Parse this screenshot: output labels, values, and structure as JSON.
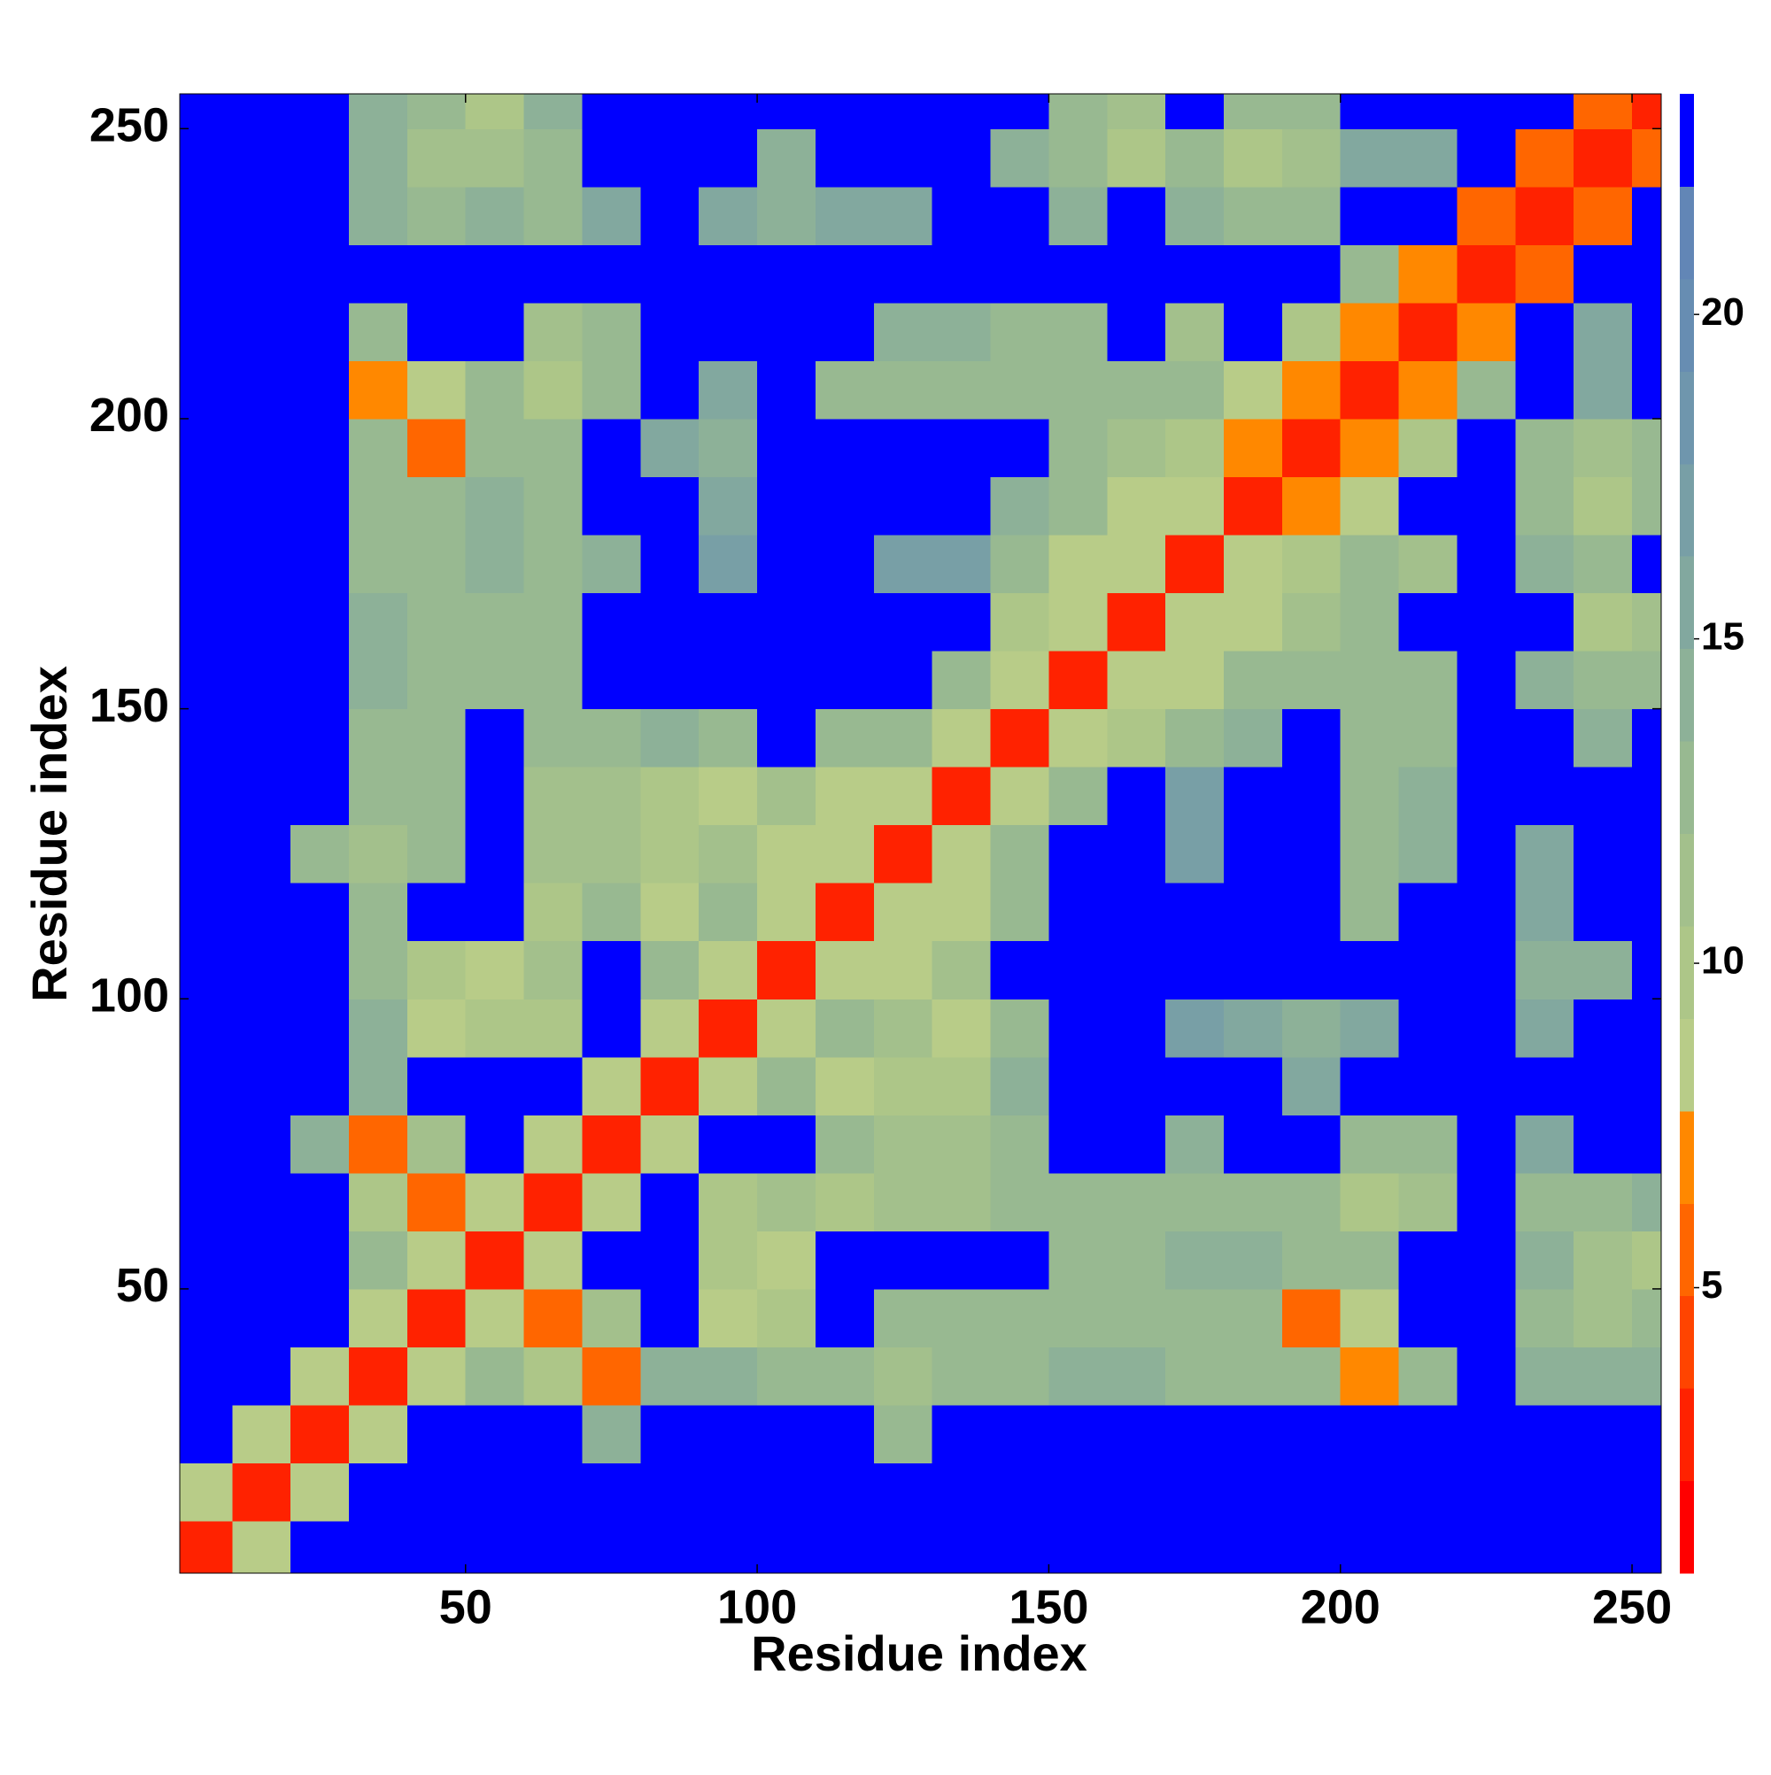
{
  "chart_data": {
    "type": "heatmap",
    "xlabel": "Residue index",
    "ylabel": "Residue index",
    "xlim": [
      1,
      255
    ],
    "ylim": [
      1,
      256
    ],
    "xticks": [
      50,
      100,
      150,
      200,
      250
    ],
    "yticks": [
      50,
      100,
      150,
      200,
      250
    ],
    "x_bins": [
      0,
      10,
      20,
      30,
      40,
      50,
      60,
      70,
      80,
      90,
      100,
      110,
      120,
      130,
      140,
      150,
      160,
      170,
      180,
      190,
      200,
      210,
      220,
      230,
      240,
      250,
      260
    ],
    "y_bins": [
      0,
      10,
      20,
      30,
      40,
      50,
      60,
      70,
      80,
      90,
      100,
      110,
      120,
      130,
      140,
      150,
      160,
      170,
      180,
      190,
      200,
      210,
      220,
      230,
      240,
      250,
      260
    ],
    "values": [
      [
        3,
        9,
        24,
        24,
        24,
        24,
        24,
        24,
        24,
        24,
        24,
        24,
        24,
        24,
        24,
        24,
        24,
        24,
        24,
        24,
        24,
        24,
        24,
        24,
        24,
        24
      ],
      [
        9,
        3,
        9,
        24,
        24,
        24,
        24,
        24,
        24,
        24,
        24,
        24,
        24,
        24,
        24,
        24,
        24,
        24,
        24,
        24,
        24,
        24,
        24,
        24,
        24,
        24
      ],
      [
        24,
        9,
        3,
        9,
        24,
        24,
        24,
        14,
        24,
        24,
        24,
        24,
        13,
        24,
        24,
        24,
        24,
        24,
        24,
        24,
        24,
        24,
        24,
        24,
        24,
        24
      ],
      [
        24,
        24,
        9,
        3,
        9,
        12,
        10,
        6,
        14,
        14,
        12,
        13,
        11,
        12,
        12,
        14,
        14,
        13,
        13,
        13,
        7,
        12,
        24,
        14,
        14,
        14
      ],
      [
        24,
        24,
        24,
        9,
        3,
        9,
        6,
        11,
        24,
        9,
        10,
        24,
        13,
        12,
        12,
        13,
        12,
        12,
        12,
        6,
        8,
        24,
        24,
        13,
        11,
        12
      ],
      [
        24,
        24,
        24,
        12,
        9,
        3,
        9,
        24,
        24,
        10,
        9,
        24,
        24,
        24,
        24,
        12,
        13,
        14,
        14,
        12,
        13,
        24,
        24,
        14,
        11,
        10
      ],
      [
        24,
        24,
        24,
        10,
        6,
        9,
        3,
        9,
        24,
        10,
        11,
        10,
        11,
        11,
        12,
        13,
        12,
        12,
        13,
        12,
        10,
        11,
        24,
        13,
        12,
        14
      ],
      [
        24,
        24,
        14,
        6,
        11,
        24,
        9,
        3,
        9,
        24,
        24,
        12,
        11,
        11,
        13,
        24,
        24,
        14,
        24,
        24,
        12,
        13,
        24,
        16,
        24,
        24
      ],
      [
        24,
        24,
        24,
        14,
        24,
        24,
        24,
        9,
        3,
        8,
        12,
        9,
        10,
        10,
        14,
        24,
        24,
        24,
        24,
        16,
        24,
        24,
        24,
        24,
        24,
        24
      ],
      [
        24,
        24,
        24,
        14,
        9,
        10,
        10,
        24,
        8,
        3,
        8,
        12,
        11,
        9,
        13,
        24,
        24,
        17,
        16,
        14,
        16,
        24,
        24,
        15,
        24,
        24
      ],
      [
        24,
        24,
        24,
        12,
        10,
        9,
        11,
        24,
        12,
        8,
        3,
        8,
        8,
        11,
        24,
        24,
        24,
        24,
        24,
        24,
        24,
        24,
        24,
        14,
        14,
        24
      ],
      [
        24,
        24,
        24,
        13,
        24,
        24,
        10,
        12,
        9,
        12,
        8,
        3,
        8,
        9,
        13,
        24,
        24,
        24,
        24,
        24,
        13,
        24,
        24,
        15,
        24,
        24
      ],
      [
        24,
        24,
        13,
        11,
        13,
        24,
        11,
        11,
        10,
        11,
        8,
        8,
        3,
        8,
        12,
        24,
        24,
        17,
        24,
        24,
        13,
        14,
        24,
        16,
        24,
        24
      ],
      [
        24,
        24,
        24,
        12,
        12,
        24,
        11,
        11,
        10,
        9,
        11,
        9,
        8,
        3,
        8,
        12,
        24,
        17,
        24,
        24,
        12,
        14,
        24,
        24,
        24,
        24
      ],
      [
        24,
        24,
        24,
        12,
        12,
        24,
        12,
        13,
        14,
        13,
        24,
        13,
        12,
        8,
        3,
        8,
        10,
        12,
        14,
        24,
        12,
        13,
        24,
        24,
        14,
        24
      ],
      [
        24,
        24,
        24,
        14,
        13,
        12,
        13,
        24,
        24,
        24,
        24,
        24,
        24,
        12,
        8,
        3,
        8,
        9,
        12,
        13,
        13,
        13,
        24,
        14,
        13,
        13
      ],
      [
        24,
        24,
        24,
        14,
        12,
        13,
        12,
        24,
        24,
        24,
        24,
        24,
        24,
        24,
        10,
        8,
        3,
        8,
        9,
        11,
        12,
        24,
        24,
        24,
        10,
        11
      ],
      [
        24,
        24,
        24,
        13,
        12,
        14,
        12,
        14,
        24,
        17,
        24,
        24,
        17,
        17,
        12,
        9,
        8,
        3,
        8,
        10,
        12,
        11,
        24,
        14,
        13,
        24
      ],
      [
        24,
        24,
        24,
        13,
        12,
        14,
        13,
        24,
        24,
        16,
        24,
        24,
        24,
        24,
        14,
        12,
        9,
        8,
        3,
        7,
        8,
        24,
        24,
        12,
        10,
        12
      ],
      [
        24,
        24,
        24,
        13,
        6,
        12,
        12,
        24,
        16,
        14,
        24,
        24,
        24,
        24,
        24,
        13,
        11,
        10,
        7,
        3,
        7,
        10,
        24,
        12,
        11,
        13
      ],
      [
        24,
        24,
        24,
        7,
        8,
        13,
        10,
        12,
        24,
        16,
        24,
        13,
        13,
        12,
        12,
        13,
        12,
        12,
        8,
        7,
        3,
        7,
        12,
        24,
        16,
        24
      ],
      [
        24,
        24,
        24,
        12,
        24,
        24,
        11,
        13,
        24,
        24,
        24,
        24,
        14,
        14,
        13,
        13,
        24,
        11,
        24,
        10,
        7,
        3,
        7,
        24,
        16,
        24
      ],
      [
        24,
        24,
        24,
        24,
        24,
        24,
        24,
        24,
        24,
        24,
        24,
        24,
        24,
        24,
        24,
        24,
        24,
        24,
        24,
        24,
        12,
        7,
        3,
        6,
        24,
        24
      ],
      [
        24,
        24,
        24,
        14,
        13,
        14,
        13,
        16,
        24,
        15,
        14,
        15,
        16,
        24,
        24,
        14,
        24,
        14,
        12,
        12,
        24,
        24,
        6,
        3,
        6,
        24
      ],
      [
        24,
        24,
        24,
        14,
        11,
        11,
        12,
        24,
        24,
        24,
        14,
        24,
        24,
        24,
        14,
        13,
        10,
        13,
        10,
        11,
        16,
        16,
        24,
        6,
        3,
        6
      ],
      [
        24,
        24,
        24,
        14,
        12,
        10,
        14,
        24,
        24,
        24,
        24,
        24,
        24,
        24,
        24,
        13,
        11,
        24,
        12,
        13,
        24,
        24,
        24,
        24,
        6,
        3
      ]
    ],
    "colorbar": {
      "lim": [
        0.6,
        23.4
      ],
      "ticks": [
        5,
        10,
        15,
        20
      ],
      "levels": [
        0.6,
        2.025,
        3.45,
        4.875,
        6.3,
        7.725,
        9.15,
        10.575,
        12,
        13.425,
        14.85,
        16.275,
        17.7,
        19.125,
        20.55,
        21.975,
        23.4
      ],
      "colors": [
        "#ff0000",
        "#ff2200",
        "#ff4400",
        "#ff6600",
        "#ff8800",
        "#b8cc88",
        "#adc688",
        "#a3c08c",
        "#98b991",
        "#8db198",
        "#82a89f",
        "#789fa6",
        "#6f96ad",
        "#678db2",
        "#6286b6",
        "#0000ff"
      ]
    }
  }
}
